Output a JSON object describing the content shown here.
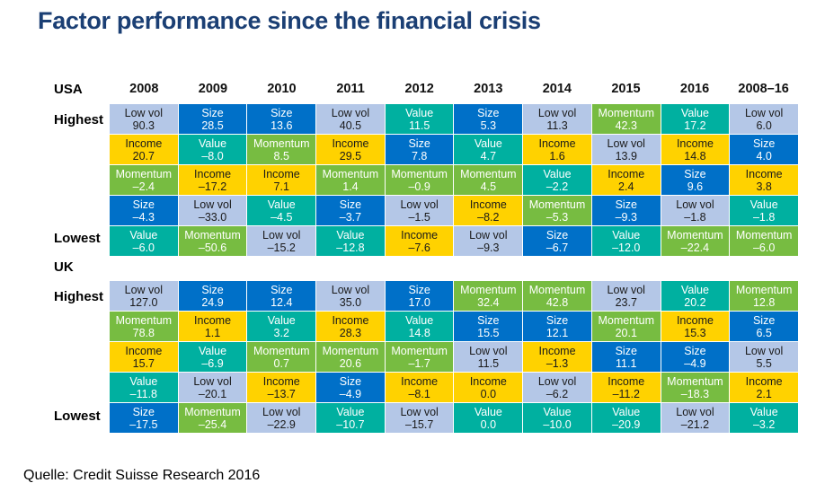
{
  "title": "Factor performance since the financial crisis",
  "columns": [
    "2008",
    "2009",
    "2010",
    "2011",
    "2012",
    "2013",
    "2014",
    "2015",
    "2016",
    "2008–16"
  ],
  "row_labels": {
    "highest": "Highest",
    "lowest": "Lowest"
  },
  "colors": {
    "Low vol": "#b4c7e7",
    "Size": "#0070c8",
    "Income": "#ffd200",
    "Value": "#00b0a0",
    "Momentum": "#77bc41"
  },
  "sections": [
    {
      "name": "USA",
      "rows": [
        [
          [
            "Low vol",
            "90.3"
          ],
          [
            "Size",
            "28.5"
          ],
          [
            "Size",
            "13.6"
          ],
          [
            "Low vol",
            "40.5"
          ],
          [
            "Value",
            "11.5"
          ],
          [
            "Size",
            "5.3"
          ],
          [
            "Low vol",
            "11.3"
          ],
          [
            "Momentum",
            "42.3"
          ],
          [
            "Value",
            "17.2"
          ],
          [
            "Low vol",
            "6.0"
          ]
        ],
        [
          [
            "Income",
            "20.7"
          ],
          [
            "Value",
            "–8.0"
          ],
          [
            "Momentum",
            "8.5"
          ],
          [
            "Income",
            "29.5"
          ],
          [
            "Size",
            "7.8"
          ],
          [
            "Value",
            "4.7"
          ],
          [
            "Income",
            "1.6"
          ],
          [
            "Low vol",
            "13.9"
          ],
          [
            "Income",
            "14.8"
          ],
          [
            "Size",
            "4.0"
          ]
        ],
        [
          [
            "Momentum",
            "–2.4"
          ],
          [
            "Income",
            "–17.2"
          ],
          [
            "Income",
            "7.1"
          ],
          [
            "Momentum",
            "1.4"
          ],
          [
            "Momentum",
            "–0.9"
          ],
          [
            "Momentum",
            "4.5"
          ],
          [
            "Value",
            "–2.2"
          ],
          [
            "Income",
            "2.4"
          ],
          [
            "Size",
            "9.6"
          ],
          [
            "Income",
            "3.8"
          ]
        ],
        [
          [
            "Size",
            "–4.3"
          ],
          [
            "Low vol",
            "–33.0"
          ],
          [
            "Value",
            "–4.5"
          ],
          [
            "Size",
            "–3.7"
          ],
          [
            "Low vol",
            "–1.5"
          ],
          [
            "Income",
            "–8.2"
          ],
          [
            "Momentum",
            "–5.3"
          ],
          [
            "Size",
            "–9.3"
          ],
          [
            "Low vol",
            "–1.8"
          ],
          [
            "Value",
            "–1.8"
          ]
        ],
        [
          [
            "Value",
            "–6.0"
          ],
          [
            "Momentum",
            "–50.6"
          ],
          [
            "Low vol",
            "–15.2"
          ],
          [
            "Value",
            "–12.8"
          ],
          [
            "Income",
            "–7.6"
          ],
          [
            "Low vol",
            "–9.3"
          ],
          [
            "Size",
            "–6.7"
          ],
          [
            "Value",
            "–12.0"
          ],
          [
            "Momentum",
            "–22.4"
          ],
          [
            "Momentum",
            "–6.0"
          ]
        ]
      ]
    },
    {
      "name": "UK",
      "rows": [
        [
          [
            "Low vol",
            "127.0"
          ],
          [
            "Size",
            "24.9"
          ],
          [
            "Size",
            "12.4"
          ],
          [
            "Low vol",
            "35.0"
          ],
          [
            "Size",
            "17.0"
          ],
          [
            "Momentum",
            "32.4"
          ],
          [
            "Momentum",
            "42.8"
          ],
          [
            "Low vol",
            "23.7"
          ],
          [
            "Value",
            "20.2"
          ],
          [
            "Momentum",
            "12.8"
          ]
        ],
        [
          [
            "Momentum",
            "78.8"
          ],
          [
            "Income",
            "1.1"
          ],
          [
            "Value",
            "3.2"
          ],
          [
            "Income",
            "28.3"
          ],
          [
            "Value",
            "14.8"
          ],
          [
            "Size",
            "15.5"
          ],
          [
            "Size",
            "12.1"
          ],
          [
            "Momentum",
            "20.1"
          ],
          [
            "Income",
            "15.3"
          ],
          [
            "Size",
            "6.5"
          ]
        ],
        [
          [
            "Income",
            "15.7"
          ],
          [
            "Value",
            "–6.9"
          ],
          [
            "Momentum",
            "0.7"
          ],
          [
            "Momentum",
            "20.6"
          ],
          [
            "Momentum",
            "–1.7"
          ],
          [
            "Low vol",
            "11.5"
          ],
          [
            "Income",
            "–1.3"
          ],
          [
            "Size",
            "11.1"
          ],
          [
            "Size",
            "–4.9"
          ],
          [
            "Low vol",
            "5.5"
          ]
        ],
        [
          [
            "Value",
            "–11.8"
          ],
          [
            "Low vol",
            "–20.1"
          ],
          [
            "Income",
            "–13.7"
          ],
          [
            "Size",
            "–4.9"
          ],
          [
            "Income",
            "–8.1"
          ],
          [
            "Income",
            "0.0"
          ],
          [
            "Low vol",
            "–6.2"
          ],
          [
            "Income",
            "–11.2"
          ],
          [
            "Momentum",
            "–18.3"
          ],
          [
            "Income",
            "2.1"
          ]
        ],
        [
          [
            "Size",
            "–17.5"
          ],
          [
            "Momentum",
            "–25.4"
          ],
          [
            "Low vol",
            "–22.9"
          ],
          [
            "Value",
            "–10.7"
          ],
          [
            "Low vol",
            "–15.7"
          ],
          [
            "Value",
            "0.0"
          ],
          [
            "Value",
            "–10.0"
          ],
          [
            "Value",
            "–20.9"
          ],
          [
            "Low vol",
            "–21.2"
          ],
          [
            "Value",
            "–3.2"
          ]
        ]
      ]
    }
  ],
  "footer": "Quelle: Credit Suisse Research 2016"
}
